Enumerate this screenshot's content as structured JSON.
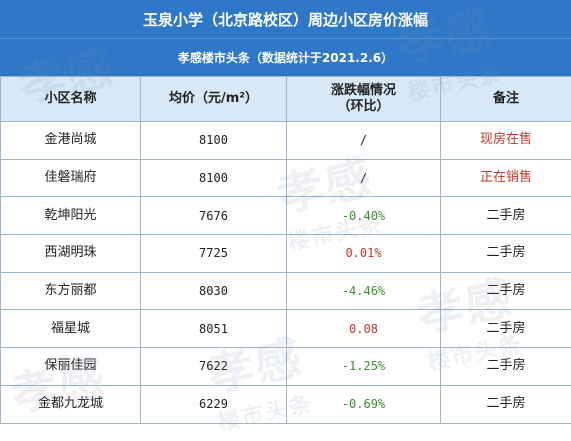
{
  "title": "玉泉小学（北京路校区）周边小区房价涨幅",
  "subtitle": "孝感楼市头条（数据统计于2021.2.6）",
  "headers": {
    "name": "小区名称",
    "price": "均价（元/m²）",
    "change_line1": "涨跌幅情况",
    "change_line2": "（环比）",
    "note": "备注"
  },
  "rows": [
    {
      "name": "金港尚城",
      "price": "8100",
      "change": "/",
      "note": "现房在售"
    },
    {
      "name": "佳磐瑞府",
      "price": "8100",
      "change": "/",
      "note": "正在销售"
    },
    {
      "name": "乾坤阳光",
      "price": "7676",
      "change": "-0.40%",
      "note": "二手房"
    },
    {
      "name": "西湖明珠",
      "price": "7725",
      "change": "0.01%",
      "note": "二手房"
    },
    {
      "name": "东方丽都",
      "price": "8030",
      "change": "-4.46%",
      "note": "二手房"
    },
    {
      "name": "福星城",
      "price": "8051",
      "change": "0.08",
      "note": "二手房"
    },
    {
      "name": "保丽佳园",
      "price": "7622",
      "change": "-1.25%",
      "note": "二手房"
    },
    {
      "name": "金都九龙城",
      "price": "6229",
      "change": "-0.69%",
      "note": "二手房"
    }
  ],
  "watermark": {
    "big": "孝感",
    "small": "楼市头条"
  },
  "colors": {
    "header_blue": "#2f78c8",
    "header_light": "#d7e8f7",
    "red": "#c0392b",
    "green": "#3e8e2f"
  }
}
